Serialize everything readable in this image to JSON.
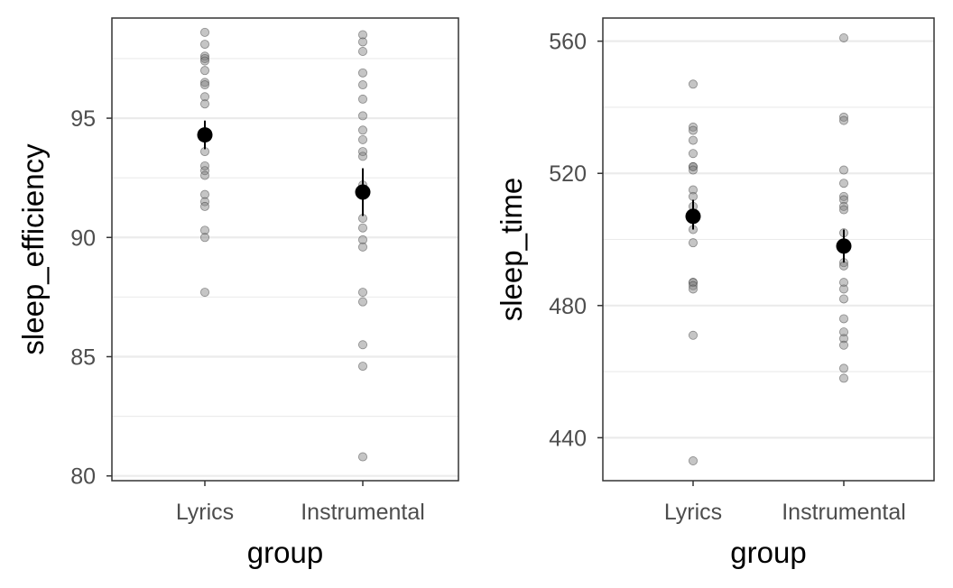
{
  "chart_data": [
    {
      "type": "scatter",
      "xlabel": "group",
      "ylabel": "sleep_efficiency",
      "categories": [
        "Lyrics",
        "Instrumental"
      ],
      "y_ticks": [
        80,
        85,
        90,
        95
      ],
      "ylim": [
        79.8,
        99.2
      ],
      "grid": true,
      "points": [
        {
          "group": "Lyrics",
          "values": [
            98.6,
            98.1,
            97.6,
            97.5,
            97.4,
            97.0,
            96.5,
            96.4,
            95.9,
            95.6,
            94.3,
            93.6,
            93.0,
            92.8,
            92.6,
            91.8,
            91.5,
            91.3,
            90.3,
            90.0,
            87.7
          ]
        },
        {
          "group": "Instrumental",
          "values": [
            98.5,
            98.2,
            97.8,
            96.9,
            96.4,
            95.8,
            95.1,
            94.5,
            94.1,
            93.6,
            93.4,
            92.2,
            91.8,
            90.8,
            90.4,
            89.9,
            89.6,
            87.7,
            87.3,
            85.5,
            84.6,
            80.8
          ]
        }
      ],
      "summary": [
        {
          "group": "Lyrics",
          "mean": 94.3,
          "lower": 93.7,
          "upper": 94.9
        },
        {
          "group": "Instrumental",
          "mean": 91.9,
          "lower": 90.9,
          "upper": 92.9
        }
      ],
      "colors": {
        "points": "#7f7f7f",
        "summary": "#000000"
      }
    },
    {
      "type": "scatter",
      "xlabel": "group",
      "ylabel": "sleep_time",
      "categories": [
        "Lyrics",
        "Instrumental"
      ],
      "y_ticks": [
        440,
        480,
        520,
        560
      ],
      "ylim": [
        427,
        567
      ],
      "grid": true,
      "points": [
        {
          "group": "Lyrics",
          "values": [
            547,
            534,
            533,
            530,
            526,
            522,
            522,
            521,
            515,
            513,
            510,
            508,
            507,
            503,
            499,
            487,
            487,
            486,
            485,
            471,
            433
          ]
        },
        {
          "group": "Instrumental",
          "values": [
            561,
            537,
            536,
            521,
            517,
            513,
            512,
            510,
            509,
            502,
            493,
            492,
            487,
            485,
            482,
            476,
            472,
            470,
            468,
            461,
            458
          ]
        }
      ],
      "summary": [
        {
          "group": "Lyrics",
          "mean": 507,
          "lower": 503,
          "upper": 512
        },
        {
          "group": "Instrumental",
          "mean": 498,
          "lower": 493,
          "upper": 503
        }
      ],
      "colors": {
        "points": "#7f7f7f",
        "summary": "#000000"
      }
    }
  ]
}
